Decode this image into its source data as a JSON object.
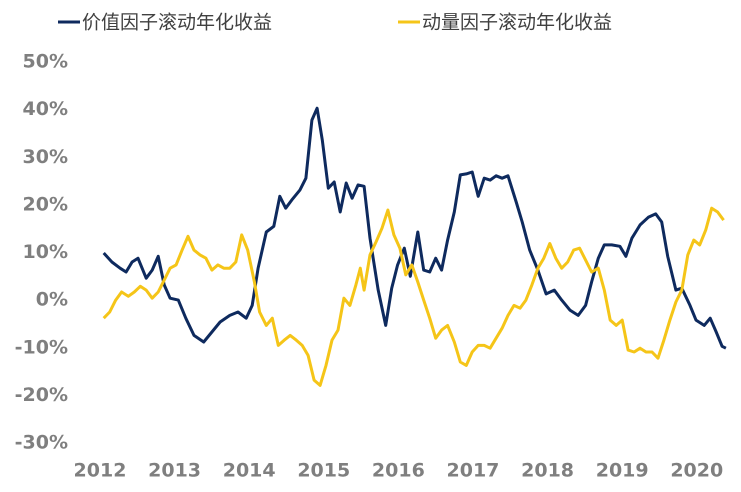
{
  "chart_data": {
    "type": "line",
    "legend": "top",
    "xlim": [
      2012,
      2020.4
    ],
    "xticks": [
      2012,
      2013,
      2014,
      2015,
      2016,
      2017,
      2018,
      2019,
      2020
    ],
    "ylim": [
      -30,
      50
    ],
    "yticks": [
      {
        "value": -30,
        "label": "-30%"
      },
      {
        "value": -20,
        "label": "-20%"
      },
      {
        "value": -10,
        "label": "-10%"
      },
      {
        "value": 0,
        "label": "0%"
      },
      {
        "value": 10,
        "label": "10%"
      },
      {
        "value": 20,
        "label": "20%"
      },
      {
        "value": 30,
        "label": "30%"
      },
      {
        "value": 40,
        "label": "40%"
      },
      {
        "value": 50,
        "label": "50%"
      }
    ],
    "series": [
      {
        "name": "价值因子滚动年化收益",
        "color": "#0e2a5e",
        "x": [
          2012.05,
          2012.16,
          2012.27,
          2012.35,
          2012.43,
          2012.51,
          2012.62,
          2012.7,
          2012.78,
          2012.86,
          2012.94,
          2013.05,
          2013.15,
          2013.26,
          2013.39,
          2013.5,
          2013.61,
          2013.74,
          2013.85,
          2013.96,
          2014.04,
          2014.12,
          2014.23,
          2014.33,
          2014.41,
          2014.49,
          2014.57,
          2014.68,
          2014.76,
          2014.84,
          2014.91,
          2014.98,
          2015.06,
          2015.14,
          2015.22,
          2015.3,
          2015.38,
          2015.46,
          2015.54,
          2015.62,
          2015.73,
          2015.83,
          2015.91,
          2015.99,
          2016.08,
          2016.16,
          2016.26,
          2016.34,
          2016.42,
          2016.5,
          2016.58,
          2016.66,
          2016.75,
          2016.83,
          2016.91,
          2016.99,
          2017.07,
          2017.15,
          2017.23,
          2017.31,
          2017.39,
          2017.47,
          2017.58,
          2017.66,
          2017.76,
          2017.87,
          2017.98,
          2018.09,
          2018.19,
          2018.3,
          2018.41,
          2018.51,
          2018.59,
          2018.68,
          2018.76,
          2018.86,
          2018.97,
          2019.05,
          2019.13,
          2019.24,
          2019.35,
          2019.45,
          2019.53,
          2019.61,
          2019.72,
          2019.8,
          2019.91,
          2019.99,
          2020.1,
          2020.18,
          2020.26,
          2020.34,
          2020.39
        ],
        "values": [
          9.9,
          8.0,
          6.7,
          5.9,
          8.0,
          8.8,
          4.6,
          6.3,
          9.2,
          3.2,
          0.4,
          0,
          -3.8,
          -7.4,
          -8.8,
          -6.7,
          -4.6,
          -3.2,
          -2.5,
          -3.8,
          -1.1,
          6.7,
          14.3,
          15.5,
          21.8,
          19.3,
          21.0,
          23.1,
          25.6,
          37.8,
          40.3,
          33.6,
          23.5,
          24.8,
          18.5,
          24.6,
          21.4,
          24.2,
          23.9,
          13.0,
          2.1,
          -5.3,
          2.5,
          7.4,
          10.9,
          5.0,
          14.3,
          6.3,
          5.9,
          8.8,
          6.3,
          12.6,
          18.5,
          26.3,
          26.5,
          26.9,
          21.8,
          25.6,
          25.2,
          26.1,
          25.6,
          26.1,
          20.6,
          16.4,
          10.5,
          6.3,
          1.3,
          2.1,
          0,
          -2.1,
          -3.2,
          -1.1,
          3.8,
          8.8,
          11.6,
          11.6,
          11.3,
          9.2,
          13.0,
          15.8,
          17.4,
          18.1,
          16.4,
          9.2,
          2.1,
          2.5,
          -1.1,
          -4.2,
          -5.3,
          -3.8,
          -6.7,
          -9.7,
          -10.1
        ]
      },
      {
        "name": "动量因子滚动年化收益",
        "color": "#f5c518",
        "x": [
          2012.05,
          2012.13,
          2012.21,
          2012.29,
          2012.38,
          2012.46,
          2012.54,
          2012.62,
          2012.7,
          2012.78,
          2012.86,
          2012.94,
          2013.02,
          2013.1,
          2013.18,
          2013.26,
          2013.34,
          2013.42,
          2013.5,
          2013.58,
          2013.66,
          2013.74,
          2013.82,
          2013.9,
          2013.98,
          2014.07,
          2014.14,
          2014.23,
          2014.31,
          2014.39,
          2014.47,
          2014.55,
          2014.63,
          2014.71,
          2014.79,
          2014.87,
          2014.95,
          2015.03,
          2015.11,
          2015.19,
          2015.27,
          2015.35,
          2015.43,
          2015.49,
          2015.54,
          2015.62,
          2015.7,
          2015.78,
          2015.86,
          2015.94,
          2016.02,
          2016.1,
          2016.18,
          2016.26,
          2016.34,
          2016.42,
          2016.5,
          2016.58,
          2016.66,
          2016.75,
          2016.83,
          2016.91,
          2016.99,
          2017.07,
          2017.15,
          2017.23,
          2017.31,
          2017.39,
          2017.47,
          2017.55,
          2017.63,
          2017.71,
          2017.79,
          2017.87,
          2017.95,
          2018.03,
          2018.11,
          2018.19,
          2018.27,
          2018.35,
          2018.43,
          2018.51,
          2018.59,
          2018.68,
          2018.76,
          2018.84,
          2018.92,
          2019.0,
          2019.08,
          2019.16,
          2019.24,
          2019.32,
          2019.4,
          2019.48,
          2019.56,
          2019.64,
          2019.72,
          2019.8,
          2019.88,
          2019.96,
          2020.04,
          2020.12,
          2020.2,
          2020.28,
          2020.36
        ],
        "values": [
          -3.8,
          -2.5,
          0,
          1.7,
          0.8,
          1.7,
          2.9,
          2.1,
          0.4,
          1.7,
          4.2,
          6.7,
          7.4,
          10.5,
          13.4,
          10.5,
          9.5,
          8.8,
          6.3,
          7.4,
          6.7,
          6.7,
          8.0,
          13.7,
          10.5,
          3.8,
          -2.5,
          -5.3,
          -3.8,
          -9.5,
          -8.4,
          -7.4,
          -8.4,
          -9.5,
          -11.6,
          -16.8,
          -17.9,
          -13.7,
          -8.4,
          -6.3,
          0.4,
          -1.1,
          3.2,
          6.7,
          2.1,
          9.5,
          12.2,
          15.1,
          18.9,
          13.7,
          10.9,
          5.3,
          7.4,
          3.8,
          0,
          -3.8,
          -8.0,
          -6.3,
          -5.3,
          -8.8,
          -13.0,
          -13.7,
          -10.9,
          -9.5,
          -9.5,
          -10.1,
          -8.0,
          -5.9,
          -3.2,
          -1.1,
          -1.7,
          0,
          3.2,
          6.7,
          8.8,
          11.9,
          8.8,
          6.7,
          8.0,
          10.5,
          10.9,
          8.4,
          5.9,
          6.7,
          2.1,
          -4.2,
          -5.3,
          -4.2,
          -10.5,
          -10.9,
          -10.1,
          -10.9,
          -10.9,
          -12.2,
          -8.4,
          -4.2,
          -0.4,
          2.1,
          9.5,
          12.6,
          11.6,
          14.7,
          19.3,
          18.5,
          16.8
        ]
      }
    ]
  }
}
